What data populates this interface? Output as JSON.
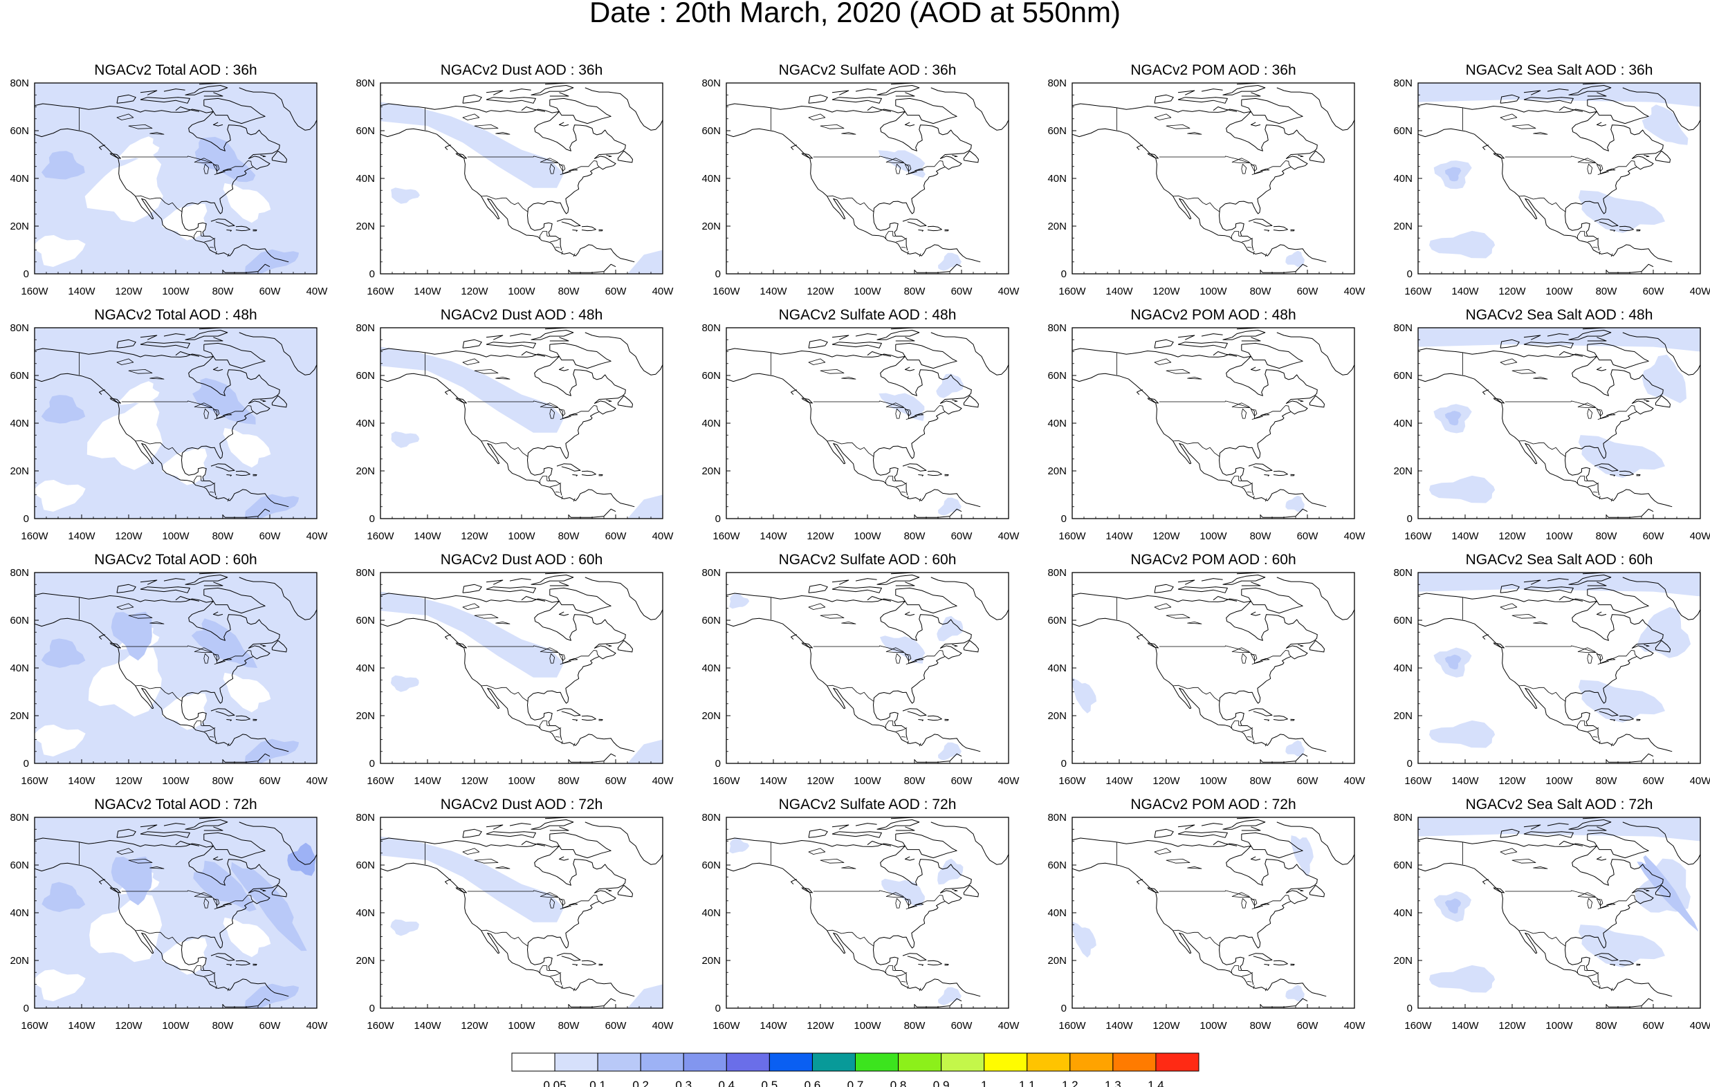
{
  "title": "Date : 20th March, 2020 (AOD at 550nm)",
  "x_ticks": [
    "160W",
    "140W",
    "120W",
    "100W",
    "80W",
    "60W",
    "40W"
  ],
  "y_ticks": [
    "0",
    "20N",
    "40N",
    "60N",
    "80N"
  ],
  "rows": [
    {
      "panels": [
        {
          "title": "NGACv2 Total AOD : 36h",
          "species": "total"
        },
        {
          "title": "NGACv2 Dust AOD : 36h",
          "species": "dust"
        },
        {
          "title": "NGACv2 Sulfate AOD : 36h",
          "species": "sulfate"
        },
        {
          "title": "NGACv2 POM AOD : 36h",
          "species": "pom"
        },
        {
          "title": "NGACv2 Sea Salt AOD : 36h",
          "species": "seasalt"
        }
      ]
    },
    {
      "panels": [
        {
          "title": "NGACv2 Total AOD : 48h",
          "species": "total"
        },
        {
          "title": "NGACv2 Dust AOD : 48h",
          "species": "dust"
        },
        {
          "title": "NGACv2 Sulfate AOD : 48h",
          "species": "sulfate"
        },
        {
          "title": "NGACv2 POM AOD : 48h",
          "species": "pom"
        },
        {
          "title": "NGACv2 Sea Salt AOD : 48h",
          "species": "seasalt"
        }
      ]
    },
    {
      "panels": [
        {
          "title": "NGACv2 Total AOD : 60h",
          "species": "total"
        },
        {
          "title": "NGACv2 Dust AOD : 60h",
          "species": "dust"
        },
        {
          "title": "NGACv2 Sulfate AOD : 60h",
          "species": "sulfate"
        },
        {
          "title": "NGACv2 POM AOD : 60h",
          "species": "pom"
        },
        {
          "title": "NGACv2 Sea Salt AOD : 60h",
          "species": "seasalt"
        }
      ]
    },
    {
      "panels": [
        {
          "title": "NGACv2 Total AOD : 72h",
          "species": "total"
        },
        {
          "title": "NGACv2 Dust AOD : 72h",
          "species": "dust"
        },
        {
          "title": "NGACv2 Sulfate AOD : 72h",
          "species": "sulfate"
        },
        {
          "title": "NGACv2 POM AOD : 72h",
          "species": "pom"
        },
        {
          "title": "NGACv2 Sea Salt  AOD : 72h",
          "species": "seasalt"
        }
      ]
    }
  ],
  "colorbar": {
    "labels": [
      "0.05",
      "0.1",
      "0.2",
      "0.3",
      "0.4",
      "0.5",
      "0.6",
      "0.7",
      "0.8",
      "0.9",
      "1",
      "1.1",
      "1.2",
      "1.3",
      "1.4"
    ],
    "colors": [
      "#ffffff",
      "#d6e0fb",
      "#b9c9f8",
      "#9db2f5",
      "#8296ef",
      "#6a6ee9",
      "#0a5ff2",
      "#089a99",
      "#3ce41e",
      "#8cf01a",
      "#c4f74a",
      "#fffc00",
      "#ffc400",
      "#ffa300",
      "#ff7b00",
      "#ff2a14"
    ]
  },
  "shading": {
    "light": "#d6e0fb",
    "mid": "#b9c9f8",
    "strong": "#9db2f5"
  }
}
